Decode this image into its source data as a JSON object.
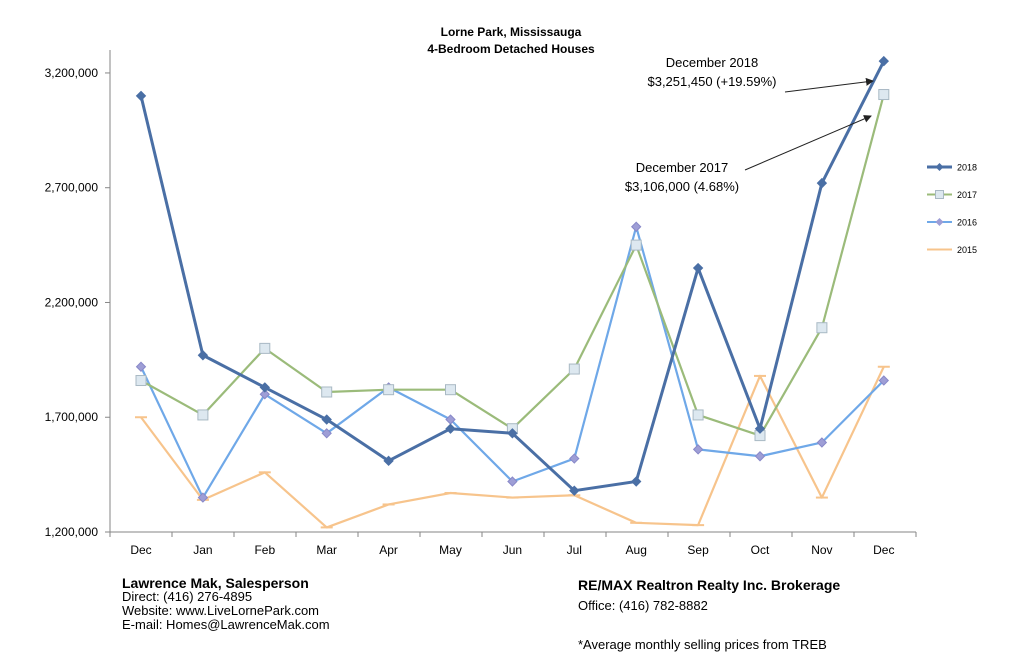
{
  "chart_data": {
    "type": "line",
    "title": "Lorne Park, Mississauga",
    "subtitle": "4-Bedroom Detached Houses",
    "categories": [
      "Dec",
      "Jan",
      "Feb",
      "Mar",
      "Apr",
      "May",
      "Jun",
      "Jul",
      "Aug",
      "Sep",
      "Oct",
      "Nov",
      "Dec"
    ],
    "ylim": [
      1200000,
      3300000
    ],
    "yticks": [
      1200000,
      1700000,
      2200000,
      2700000,
      3200000
    ],
    "ytick_labels": [
      "1,200,000",
      "1,700,000",
      "2,200,000",
      "2,700,000",
      "3,200,000"
    ],
    "grid": false,
    "legend_position": "right",
    "series": [
      {
        "name": "2018",
        "color": "#4a6fa5",
        "marker": "diamond",
        "values": [
          3100000,
          1970000,
          1830000,
          1690000,
          1510000,
          1650000,
          1630000,
          1380000,
          1420000,
          2350000,
          1650000,
          2720000,
          3251450
        ]
      },
      {
        "name": "2017",
        "color": "#9bbb7a",
        "marker": "square",
        "values": [
          1860000,
          1710000,
          2000000,
          1810000,
          1820000,
          1820000,
          1650000,
          1910000,
          2450000,
          1710000,
          1620000,
          2090000,
          3106000
        ]
      },
      {
        "name": "2016",
        "color": "#6fa8e8",
        "marker": "diamond",
        "values": [
          1920000,
          1350000,
          1800000,
          1630000,
          1830000,
          1690000,
          1420000,
          1520000,
          2530000,
          1560000,
          1530000,
          1590000,
          1860000
        ]
      },
      {
        "name": "2015",
        "color": "#f7c48c",
        "marker": "dash",
        "values": [
          1700000,
          1340000,
          1460000,
          1220000,
          1320000,
          1370000,
          1350000,
          1360000,
          1240000,
          1230000,
          1880000,
          1350000,
          1920000
        ]
      }
    ],
    "annotations": [
      {
        "line1": "December 2018",
        "line2": "$3,251,450 (+19.59%)"
      },
      {
        "line1": "December 2017",
        "line2": "$3,106,000 (4.68%)"
      }
    ]
  },
  "footer": {
    "agent_name": "Lawrence Mak, Salesperson",
    "direct": "Direct:  (416) 276-4895",
    "website": "Website:  www.LiveLornePark.com",
    "email": "E-mail:  Homes@LawrenceMak.com",
    "broker": "RE/MAX Realtron Realty Inc. Brokerage",
    "office": "Office: (416) 782-8882",
    "note": "*Average monthly selling prices from TREB"
  }
}
